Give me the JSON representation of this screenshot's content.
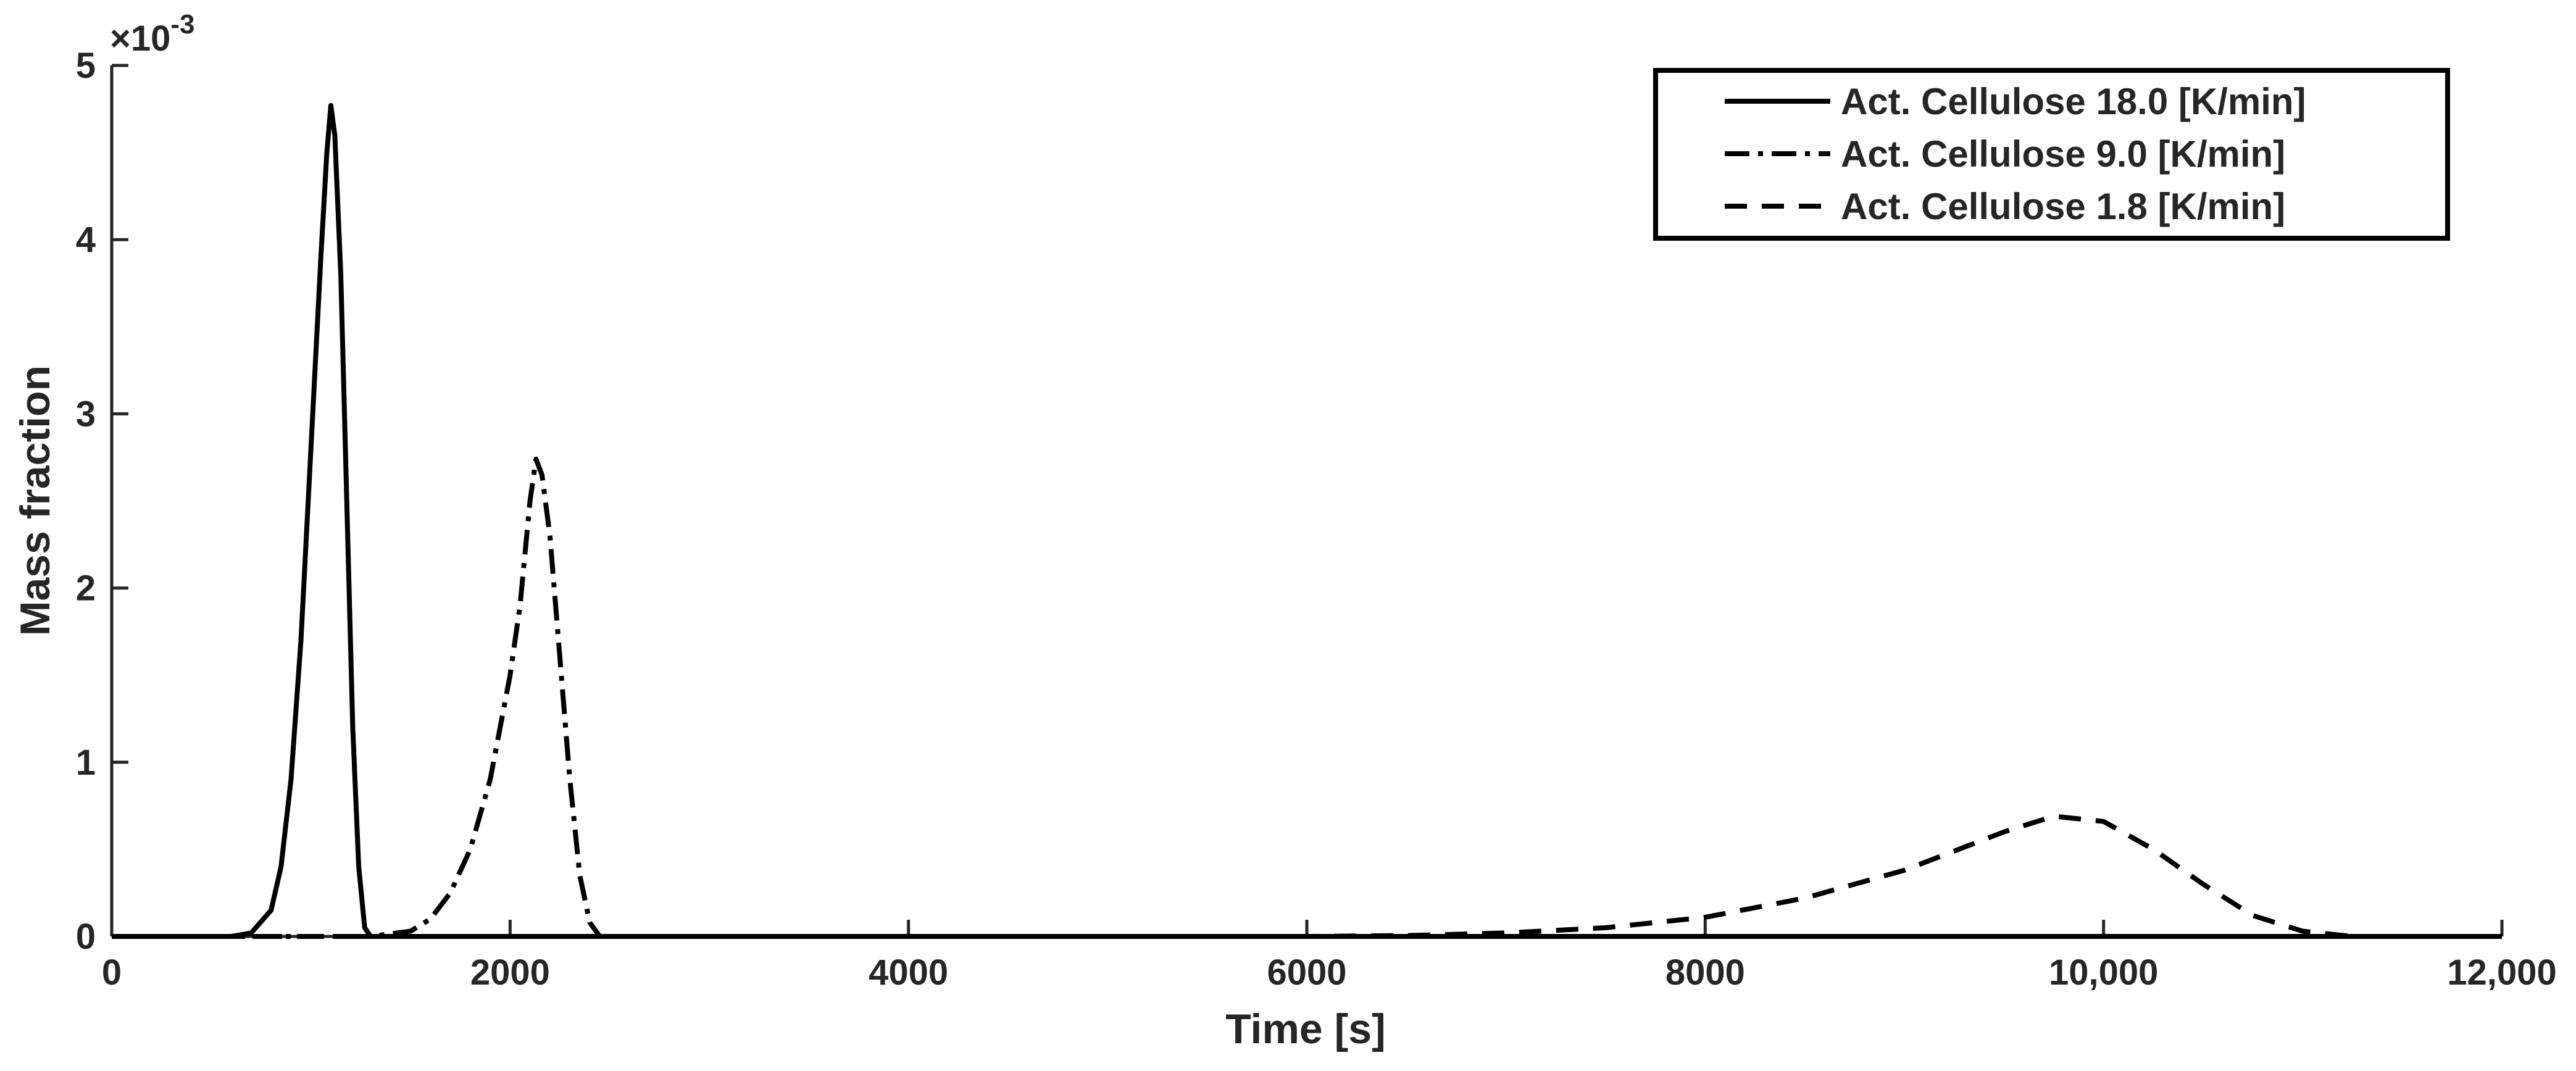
{
  "chart_data": {
    "type": "line",
    "x_label": "Time [s]",
    "y_label": "Mass fraction",
    "y_multiplier": {
      "base": "×10",
      "exponent": "-3"
    },
    "xlim": [
      0,
      12000
    ],
    "xticks": [
      0,
      2000,
      4000,
      6000,
      8000,
      {
        "value": 10000,
        "label": "10,000"
      },
      {
        "value": 12000,
        "label": "12,000"
      }
    ],
    "ylim": [
      0,
      5
    ],
    "yticks": [
      0,
      1,
      2,
      3,
      4,
      5
    ],
    "grid": false,
    "legend": "upper right",
    "series": [
      {
        "name": "Act. Cellulose 18.0 [K/min]",
        "color": "#000000",
        "dash": "solid",
        "x": [
          0,
          600,
          700,
          800,
          850,
          900,
          950,
          1000,
          1050,
          1080,
          1100,
          1120,
          1150,
          1180,
          1210,
          1240,
          1270,
          1300,
          12000
        ],
        "values": [
          0,
          0,
          0.02,
          0.15,
          0.4,
          0.9,
          1.7,
          2.8,
          3.9,
          4.5,
          4.77,
          4.6,
          3.8,
          2.5,
          1.2,
          0.4,
          0.05,
          0,
          0
        ]
      },
      {
        "name": "Act. Cellulose 9.0 [K/min]",
        "color": "#000000",
        "dash": "dashdot",
        "x": [
          0,
          1300,
          1500,
          1600,
          1700,
          1800,
          1900,
          2000,
          2050,
          2100,
          2130,
          2160,
          2200,
          2250,
          2300,
          2350,
          2400,
          2450,
          12000
        ],
        "values": [
          0,
          0,
          0.03,
          0.1,
          0.25,
          0.5,
          0.9,
          1.5,
          1.9,
          2.5,
          2.74,
          2.65,
          2.3,
          1.6,
          0.9,
          0.35,
          0.08,
          0,
          0
        ]
      },
      {
        "name": "Act. Cellulose 1.8 [K/min]",
        "color": "#000000",
        "dash": "dashed",
        "x": [
          0,
          6000,
          6500,
          7000,
          7500,
          8000,
          8500,
          9000,
          9250,
          9500,
          9750,
          10000,
          10250,
          10500,
          10750,
          11000,
          11250,
          12000
        ],
        "values": [
          0,
          0,
          0.005,
          0.02,
          0.05,
          0.11,
          0.22,
          0.38,
          0.49,
          0.6,
          0.69,
          0.66,
          0.5,
          0.3,
          0.12,
          0.03,
          0,
          0
        ]
      }
    ]
  }
}
